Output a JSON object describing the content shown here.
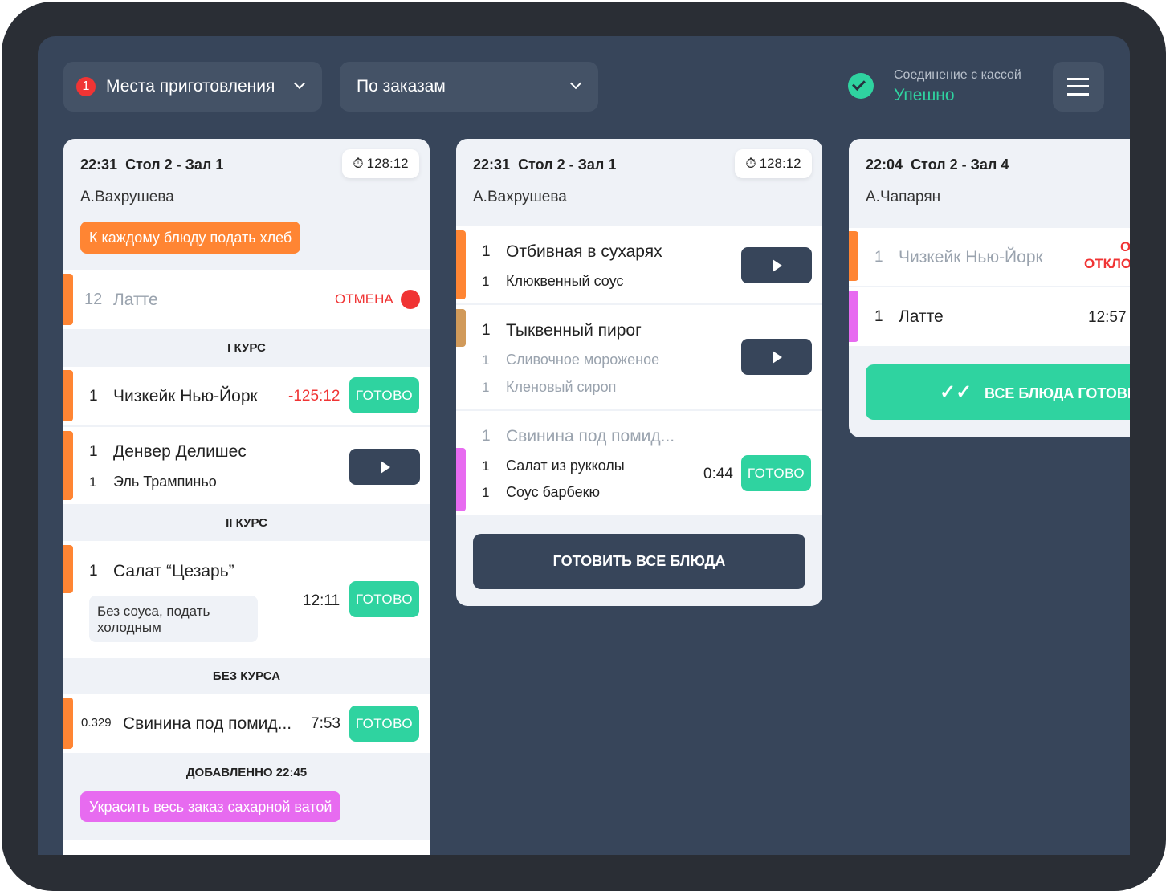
{
  "toolbar": {
    "places_badge": "1",
    "places_label": "Места приготовления",
    "grouping_label": "По заказам",
    "connection_label": "Соединение с кассой",
    "connection_status": "Упешно",
    "menu_icon": "hamburger-icon"
  },
  "colors": {
    "accent_green": "#2fd3a0",
    "dark": "#37455a",
    "orange": "#ff8533",
    "purple": "#e76bf0",
    "tan": "#d19a5a",
    "red": "#f03434"
  },
  "orders": [
    {
      "time": "22:31",
      "table": "Стол 2 - Зал 1",
      "timer": "128:12",
      "waiter": "А.Вахрушева",
      "note": "К каждому блюду подать хлеб",
      "cancel": {
        "qty": "12",
        "name": "Латте",
        "status": "ОТМЕНА"
      },
      "courses": [
        {
          "title": "I КУРС",
          "items": [
            {
              "qty": "1",
              "name": "Чизкейк Нью-Йорк",
              "time": "-125:12",
              "action": "ГОТОВО"
            },
            {
              "qty": "1",
              "name": "Денвер Делишес",
              "sub_qty": "1",
              "sub_name": "Эль Трампиньо"
            }
          ]
        },
        {
          "title": "II КУРС",
          "items": [
            {
              "qty": "1",
              "name": "Салат “Цезарь”",
              "comment": "Без соуса, подать холодным",
              "time": "12:11",
              "action": "ГОТОВО"
            }
          ]
        },
        {
          "title": "БЕЗ КУРСА",
          "items": [
            {
              "qty": "0.329",
              "name": "Свинина под помид...",
              "time": "7:53",
              "action": "ГОТОВО"
            }
          ]
        }
      ],
      "added": "ДОБАВЛЕННО 22:45",
      "added_note": "Украсить весь заказ сахарной ватой"
    },
    {
      "time": "22:31",
      "table": "Стол 2 - Зал 1",
      "timer": "128:12",
      "waiter": "А.Вахрушева",
      "items": [
        {
          "qty": "1",
          "name": "Отбивная в сухарях",
          "mods": [
            {
              "qty": "1",
              "name": "Клюквенный соус"
            }
          ]
        },
        {
          "qty": "1",
          "name": "Тыквенный пирог",
          "mods": [
            {
              "qty": "1",
              "name": "Сливочное мороженое"
            },
            {
              "qty": "1",
              "name": "Кленовый сироп"
            }
          ]
        },
        {
          "qty": "1",
          "name": "Свинина под помид...",
          "mods": [
            {
              "qty": "1",
              "name": "Салат из рукколы"
            },
            {
              "qty": "1",
              "name": "Соус барбекю"
            }
          ],
          "time": "0:44",
          "action": "ГОТОВО"
        }
      ],
      "cook_all": "ГОТОВИТЬ ВСЕ БЛЮДА"
    },
    {
      "time": "22:04",
      "table": "Стол 2 - Зал 4",
      "waiter": "А.Чапарян",
      "items": [
        {
          "qty": "1",
          "name": "Чизкейк Нью-Йорк",
          "status_line1": "О",
          "status_line2": "ОТКЛО"
        },
        {
          "qty": "1",
          "name": "Латте",
          "time": "12:57"
        }
      ],
      "all_ready": "ВСЕ БЛЮДА ГОТОВЬ"
    }
  ]
}
